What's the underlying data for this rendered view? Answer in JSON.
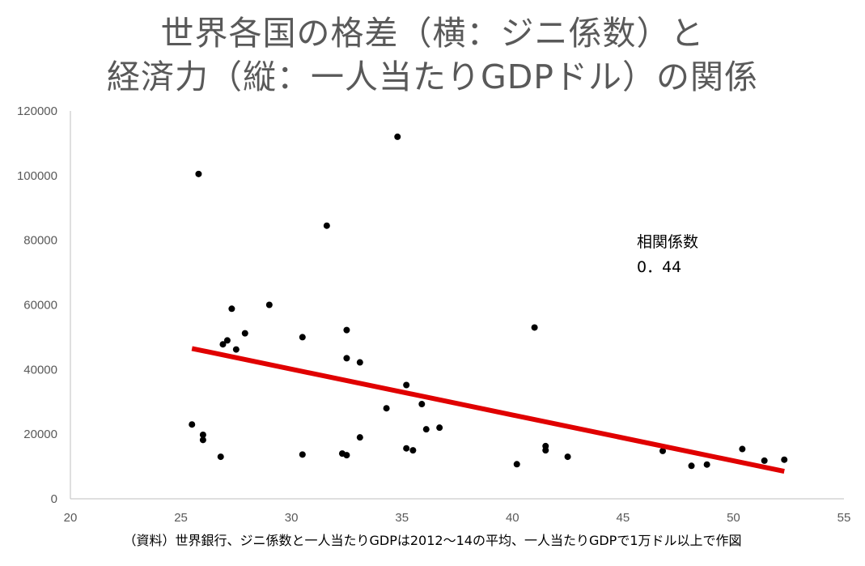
{
  "title_lines": [
    "世界各国の格差（横：ジニ係数）と",
    "経済力（縦：一人当たりGDPドル）の関係"
  ],
  "annotation": {
    "label": "相関係数",
    "value": "0．44"
  },
  "source_note": "（資料）世界銀行、ジニ係数と一人当たりGDPは2012～14の平均、一人当たりGDPで1万ドル以上で作図",
  "chart_data": {
    "type": "scatter",
    "xlim": [
      20,
      55
    ],
    "ylim": [
      0,
      120000
    ],
    "x_ticks": [
      "20",
      "25",
      "30",
      "35",
      "40",
      "45",
      "50",
      "55"
    ],
    "y_ticks": [
      "0",
      "20000",
      "40000",
      "60000",
      "80000",
      "100000",
      "120000"
    ],
    "grid": false,
    "marker_color": "#000000",
    "trendline_color": "#e00000",
    "trendline": {
      "x": [
        25.5,
        52.3
      ],
      "y": [
        46500,
        8500
      ]
    },
    "points": [
      {
        "x": 25.5,
        "y": 23000
      },
      {
        "x": 25.8,
        "y": 100500
      },
      {
        "x": 26.0,
        "y": 19800
      },
      {
        "x": 26.0,
        "y": 18200
      },
      {
        "x": 26.8,
        "y": 13000
      },
      {
        "x": 26.9,
        "y": 47800
      },
      {
        "x": 27.1,
        "y": 49000
      },
      {
        "x": 27.3,
        "y": 58800
      },
      {
        "x": 27.5,
        "y": 46200
      },
      {
        "x": 27.9,
        "y": 51200
      },
      {
        "x": 29.0,
        "y": 60000
      },
      {
        "x": 30.5,
        "y": 50000
      },
      {
        "x": 30.5,
        "y": 13700
      },
      {
        "x": 31.6,
        "y": 84500
      },
      {
        "x": 32.3,
        "y": 14000
      },
      {
        "x": 32.5,
        "y": 13500
      },
      {
        "x": 32.5,
        "y": 52200
      },
      {
        "x": 32.5,
        "y": 43500
      },
      {
        "x": 33.1,
        "y": 42200
      },
      {
        "x": 33.1,
        "y": 19000
      },
      {
        "x": 34.3,
        "y": 28000
      },
      {
        "x": 34.8,
        "y": 112000
      },
      {
        "x": 35.2,
        "y": 35200
      },
      {
        "x": 35.2,
        "y": 15600
      },
      {
        "x": 35.5,
        "y": 15000
      },
      {
        "x": 35.9,
        "y": 29300
      },
      {
        "x": 36.1,
        "y": 21500
      },
      {
        "x": 36.7,
        "y": 22000
      },
      {
        "x": 40.2,
        "y": 10700
      },
      {
        "x": 41.0,
        "y": 53000
      },
      {
        "x": 41.5,
        "y": 16300
      },
      {
        "x": 41.5,
        "y": 15000
      },
      {
        "x": 42.5,
        "y": 13000
      },
      {
        "x": 46.8,
        "y": 14800
      },
      {
        "x": 48.1,
        "y": 10200
      },
      {
        "x": 48.8,
        "y": 10600
      },
      {
        "x": 50.4,
        "y": 15400
      },
      {
        "x": 51.4,
        "y": 11800
      },
      {
        "x": 52.3,
        "y": 12100
      }
    ]
  }
}
